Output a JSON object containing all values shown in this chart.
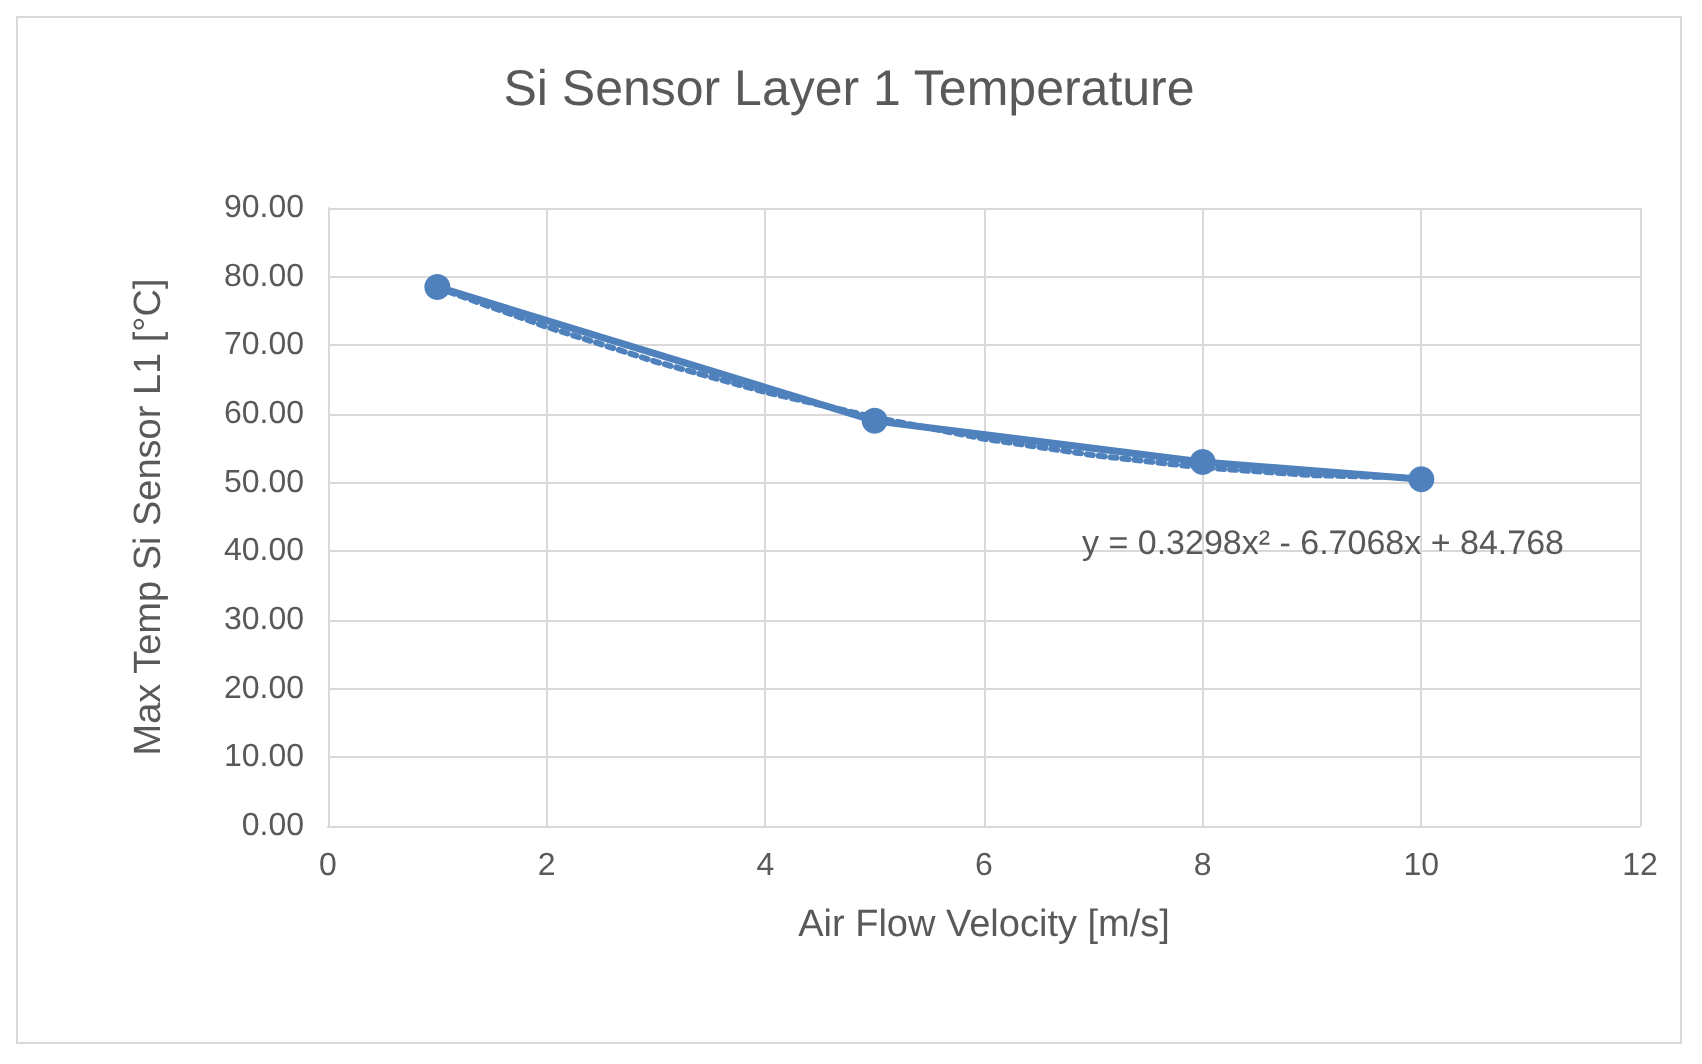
{
  "chart_data": {
    "type": "line",
    "title": "Si Sensor Layer 1 Temperature",
    "xlabel": "Air Flow Velocity [m/s]",
    "ylabel": "Max Temp Si Sensor L1 [°C]",
    "x": [
      1,
      5,
      8,
      10
    ],
    "series": [
      {
        "color": "#4f81bd",
        "values": [
          78.5,
          59.0,
          53.0,
          50.5
        ],
        "marker": "circle",
        "line_style": "solid"
      },
      {
        "type": "line",
        "color": "#4f81bd",
        "x": [
          1,
          2,
          3,
          4,
          5,
          6,
          7,
          8,
          9,
          10
        ],
        "values": [
          78.4,
          72.7,
          67.6,
          63.2,
          59.5,
          56.4,
          54.0,
          52.2,
          51.1,
          50.7
        ],
        "marker": "none",
        "line_style": "dotted"
      }
    ],
    "xlim": [
      0,
      12
    ],
    "xticks": [
      0,
      2,
      4,
      6,
      8,
      10,
      12
    ],
    "ylim": [
      0,
      90
    ],
    "yticks": [
      {
        "value": 0,
        "label": "0.00"
      },
      {
        "value": 10,
        "label": "10.00"
      },
      {
        "value": 20,
        "label": "20.00"
      },
      {
        "value": 30,
        "label": "30.00"
      },
      {
        "value": 40,
        "label": "40.00"
      },
      {
        "value": 50,
        "label": "50.00"
      },
      {
        "value": 60,
        "label": "60.00"
      },
      {
        "value": 70,
        "label": "70.00"
      },
      {
        "value": 80,
        "label": "80.00"
      },
      {
        "value": 90,
        "label": "90.00"
      }
    ],
    "grid": true,
    "annotations": [
      "y = 0.3298x² - 6.7068x + 84.768"
    ]
  }
}
